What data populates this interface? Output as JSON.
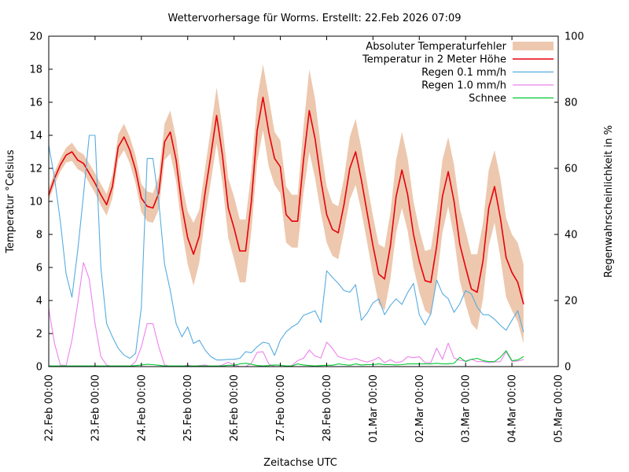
{
  "chart_data": {
    "type": "line",
    "title": "Wettervorhersage für Worms. Erstellt: 22.Feb 2026 07:09",
    "xlabel": "Zeitachse UTC",
    "ylabel_left": "Temperatur °Celsius",
    "ylabel_right": "Regenwahrscheinlichkeit in %",
    "ylim_left": [
      0,
      20
    ],
    "ylim_right": [
      0,
      100
    ],
    "yticks_left": [
      0,
      2,
      4,
      6,
      8,
      10,
      12,
      14,
      16,
      18,
      20
    ],
    "yticks_right": [
      0,
      20,
      40,
      60,
      80,
      100
    ],
    "x_tick_labels": [
      "22.Feb 00:00",
      "23.Feb 00:00",
      "24.Feb 00:00",
      "25.Feb 00:00",
      "26.Feb 00:00",
      "27.Feb 00:00",
      "28.Feb 00:00",
      "01.Mar 00:00",
      "02.Mar 00:00",
      "03.Mar 00:00",
      "04.Mar 00:00",
      "05.Mar 00:00"
    ],
    "x_span_hours": 264,
    "sample_interval_hours": 3,
    "grid": false,
    "legend_position": "top-right-inside",
    "series": [
      {
        "name": "Absoluter Temperaturfehler",
        "kind": "band",
        "axis": "left",
        "color": "#edc8ae",
        "error_values": [
          0.35,
          0.4,
          0.4,
          0.45,
          0.55,
          0.55,
          0.55,
          0.6,
          0.6,
          0.65,
          0.65,
          0.7,
          0.75,
          0.8,
          0.8,
          0.85,
          0.85,
          0.9,
          0.9,
          1.0,
          1.1,
          1.3,
          1.3,
          1.4,
          1.6,
          1.9,
          1.6,
          1.5,
          1.6,
          1.7,
          1.7,
          1.8,
          1.9,
          1.9,
          1.9,
          1.8,
          1.9,
          2.0,
          2.1,
          1.6,
          1.6,
          1.7,
          1.6,
          1.6,
          2.0,
          2.5,
          2.4,
          2.0,
          1.7,
          1.6,
          1.6,
          1.6,
          1.9,
          2.0,
          1.9,
          1.8,
          1.8,
          1.8,
          1.9,
          2.0,
          2.2,
          2.3,
          2.2,
          2.0,
          1.9,
          1.8,
          2.0,
          2.1,
          2.2,
          2.1,
          2.2,
          2.2,
          2.2,
          2.1,
          2.3,
          2.3,
          2.3,
          2.2,
          2.4,
          2.4,
          2.3,
          2.4,
          2.4
        ]
      },
      {
        "name": "Temperatur in 2 Meter Höhe",
        "kind": "line",
        "axis": "left",
        "color": "#e8000d",
        "width": 1.6,
        "values": [
          10.4,
          11.4,
          12.2,
          12.8,
          13.0,
          12.5,
          12.3,
          11.7,
          11.1,
          10.4,
          9.8,
          10.9,
          13.3,
          13.9,
          13.1,
          11.9,
          10.2,
          9.7,
          9.6,
          10.5,
          13.6,
          14.2,
          12.5,
          9.7,
          7.8,
          6.8,
          7.9,
          10.5,
          12.8,
          15.2,
          12.8,
          9.6,
          8.4,
          7.0,
          7.0,
          10.0,
          14.3,
          16.3,
          14.2,
          12.6,
          12.1,
          9.2,
          8.8,
          8.8,
          12.5,
          15.5,
          13.8,
          11.3,
          9.2,
          8.3,
          8.1,
          9.8,
          12.0,
          13.0,
          11.3,
          9.3,
          7.3,
          5.6,
          5.3,
          7.3,
          10.3,
          11.9,
          10.4,
          8.0,
          6.4,
          5.2,
          5.1,
          7.3,
          10.3,
          11.8,
          10.0,
          7.4,
          6.0,
          4.7,
          4.5,
          6.4,
          9.6,
          10.9,
          9.0,
          6.6,
          5.7,
          5.1,
          3.8
        ]
      },
      {
        "name": "Regen 0.1 mm/h",
        "kind": "line",
        "axis": "right",
        "color": "#56ace0",
        "width": 1.1,
        "values": [
          67,
          57,
          44,
          28,
          21,
          35,
          52,
          70,
          70,
          30,
          13,
          9,
          5.5,
          3.5,
          2.5,
          4,
          18,
          63,
          63,
          50,
          31,
          23,
          13,
          9,
          12,
          7,
          8,
          5,
          3,
          2,
          2,
          2.2,
          2.2,
          2.5,
          4.5,
          4.2,
          6,
          7.4,
          7,
          3.4,
          8,
          10.5,
          12,
          13,
          15.5,
          16.2,
          16.9,
          13.3,
          29,
          27,
          25.2,
          23,
          22.5,
          24.8,
          14,
          16.2,
          19.3,
          20.5,
          15.7,
          18.5,
          20.5,
          18.8,
          22.4,
          25.2,
          15.7,
          12.6,
          16,
          26.2,
          22.1,
          20.5,
          16.4,
          19,
          23,
          22,
          18,
          15.7,
          15.7,
          14.3,
          12.5,
          11,
          14,
          16.9,
          10.5
        ]
      },
      {
        "name": "Regen 1.0 mm/h",
        "kind": "line",
        "axis": "right",
        "color": "#ee82ee",
        "width": 1.1,
        "values": [
          17.5,
          7,
          0.5,
          0.3,
          8,
          19,
          31.5,
          26.5,
          13,
          3,
          0.5,
          0,
          0,
          0,
          0,
          1.5,
          6,
          13,
          13,
          6,
          0.5,
          0,
          0,
          0,
          0.5,
          0,
          0.3,
          0.5,
          0,
          0,
          0.5,
          1.3,
          0.5,
          0,
          0,
          1,
          4.3,
          4.5,
          0.8,
          0,
          0,
          0,
          0.3,
          1.8,
          2.5,
          5,
          3.2,
          2.6,
          7.4,
          5.5,
          3,
          2.5,
          2,
          2.5,
          1.8,
          1.4,
          1.9,
          2.8,
          1.2,
          2.1,
          1.2,
          1.5,
          3,
          2.7,
          3,
          1.2,
          1.2,
          5.6,
          2.2,
          7.1,
          2.6,
          1.9,
          1.7,
          2.2,
          1.5,
          1.5,
          1.2,
          1.4,
          1.5,
          4.5,
          1.6,
          1.7,
          2.1
        ]
      },
      {
        "name": "Schnee",
        "kind": "line",
        "axis": "right",
        "color": "#00c832",
        "width": 1.1,
        "values": [
          0.2,
          0.2,
          0.2,
          0.2,
          0.2,
          0.2,
          0.2,
          0.2,
          0.2,
          0.2,
          0.2,
          0.2,
          0.2,
          0.2,
          0.2,
          0.3,
          0.5,
          0.7,
          0.6,
          0.4,
          0.2,
          0.2,
          0.2,
          0.2,
          0.2,
          0.2,
          0.2,
          0.2,
          0.2,
          0.2,
          0.2,
          0.4,
          0.4,
          0.8,
          1.0,
          0.7,
          0.3,
          0.2,
          0.3,
          0.5,
          0.4,
          0.2,
          0.2,
          0.8,
          0.5,
          0.3,
          0.2,
          0.3,
          0.4,
          0.4,
          0.8,
          0.6,
          0.4,
          0.8,
          0.5,
          0.6,
          0.6,
          0.8,
          0.6,
          0.6,
          0.5,
          0.6,
          0.8,
          0.8,
          0.8,
          0.8,
          0.8,
          1.0,
          0.8,
          0.8,
          1.0,
          2.8,
          1.5,
          2.2,
          2.5,
          1.8,
          1.5,
          1.5,
          2.8,
          4.8,
          1.8,
          2.0,
          3.0
        ]
      }
    ]
  }
}
